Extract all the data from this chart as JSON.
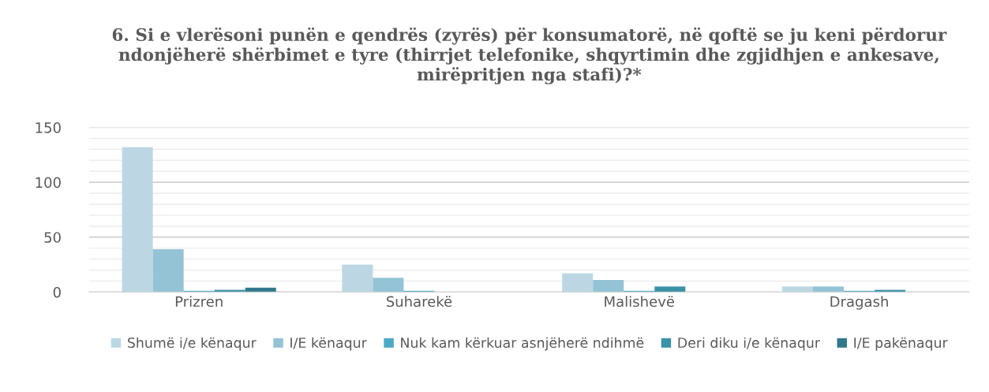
{
  "chart_data": {
    "type": "bar",
    "title": "6. Si e vlerësoni punën e qendrës (zyrës) për konsumatorë, në qoftë se ju keni përdorur ndonjëherë shërbimet e tyre (thirrjet telefonike, shqyrtimin dhe zgjidhjen e ankesave, mirëpritjen nga stafi)?*",
    "categories": [
      "Prizren",
      "Suharekë",
      "Malishevë",
      "Dragash"
    ],
    "series": [
      {
        "name": "Shumë i/e kënaqur",
        "color": "#bcd7e3",
        "values": [
          132,
          25,
          17,
          5
        ]
      },
      {
        "name": "I/E kënaqur",
        "color": "#93c3d5",
        "values": [
          39,
          13,
          11,
          5
        ]
      },
      {
        "name": "Nuk kam kërkuar asnjëherë ndihmë",
        "color": "#4aa9c4",
        "values": [
          1,
          1,
          1,
          1
        ]
      },
      {
        "name": "Deri diku i/e kënaqur",
        "color": "#3a91a8",
        "values": [
          2,
          0,
          5,
          2
        ]
      },
      {
        "name": "I/E pakënaqur",
        "color": "#31788c",
        "values": [
          4,
          0,
          0,
          0
        ]
      }
    ],
    "ylim": [
      0,
      150
    ],
    "yticks": [
      0,
      {
        "value": 10,
        "label": null
      },
      {
        "value": 20,
        "label": null
      },
      {
        "value": 30,
        "label": null
      },
      {
        "value": 40,
        "label": null
      },
      50,
      {
        "value": 60,
        "label": null
      },
      {
        "value": 70,
        "label": null
      },
      {
        "value": 80,
        "label": null
      },
      {
        "value": 90,
        "label": null
      },
      100,
      {
        "value": 110,
        "label": null
      },
      {
        "value": 120,
        "label": null
      },
      {
        "value": 130,
        "label": null
      },
      {
        "value": 140,
        "label": null
      },
      150
    ],
    "grid": "y",
    "legend": "bottom"
  }
}
